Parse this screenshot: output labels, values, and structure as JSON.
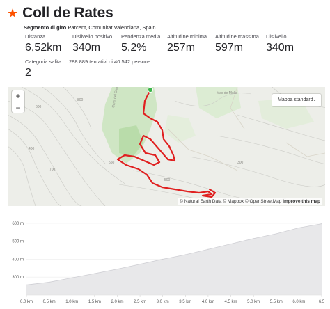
{
  "segment": {
    "title": "Coll de Rates",
    "subtitle_prefix": "Segmento di giro",
    "subtitle_location": "Parcent, Comunitat Valenciana, Spain",
    "accent_color": "#fc5200"
  },
  "stats": [
    {
      "label": "Distanza",
      "value": "6,52km"
    },
    {
      "label": "Dislivello positivo",
      "value": "340m"
    },
    {
      "label": "Pendenza media",
      "value": "5,2%"
    },
    {
      "label": "Altitudine minima",
      "value": "257m"
    },
    {
      "label": "Altitudine massima",
      "value": "597m"
    },
    {
      "label": "Dislivello",
      "value": "340m"
    }
  ],
  "category": {
    "label": "Categoria salita",
    "value": "2"
  },
  "attempts_text": "288.889 tentativi di 40.542 persone",
  "map": {
    "zoom_in": "+",
    "zoom_out": "−",
    "style_select": "Mappa standard",
    "attribution_text": "© Natural Earth Data © Mapbox © OpenStreetMap",
    "attribution_link": "Improve this map",
    "labels": [
      "Cami del Corral",
      "Mas de Molla",
      "600",
      "400",
      "800",
      "500",
      "300",
      "700",
      "550"
    ],
    "route_color": "#e02020",
    "start_color": "#3bb54a"
  },
  "chart_data": {
    "type": "area",
    "x_unit": "km",
    "y_unit": "m",
    "x": [
      0,
      0.5,
      1.0,
      1.5,
      2.0,
      2.5,
      3.0,
      3.5,
      4.0,
      4.5,
      5.0,
      5.5,
      6.0,
      6.5
    ],
    "values": [
      257,
      272,
      296,
      320,
      345,
      372,
      400,
      425,
      455,
      485,
      515,
      542,
      575,
      597
    ],
    "xlim": [
      0,
      6.5
    ],
    "ylim": [
      200,
      650
    ],
    "y_ticks": [
      300,
      400,
      500,
      600
    ],
    "x_tick_labels": [
      "0,0 km",
      "0,5 km",
      "1,0 km",
      "1,5 km",
      "2,0 km",
      "2,5 km",
      "3,0 km",
      "3,5 km",
      "4,0 km",
      "4,5 km",
      "5,0 km",
      "5,5 km",
      "6,0 km",
      "6,5"
    ],
    "y_tick_labels": [
      "300 m",
      "400 m",
      "500 m",
      "600 m"
    ],
    "fill_color": "#e8e8ea",
    "line_color": "#cfcfd4"
  }
}
